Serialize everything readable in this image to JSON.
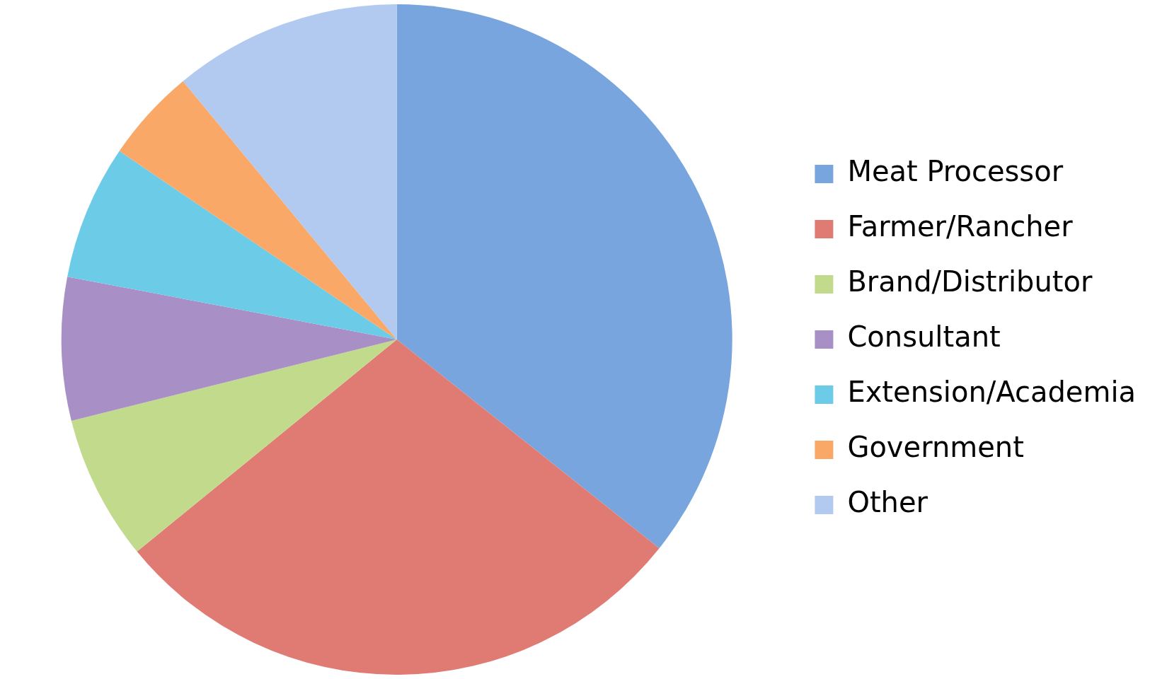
{
  "chart_data": {
    "type": "pie",
    "categories": [
      "Meat Processor",
      "Farmer/Rancher",
      "Brand/Distributor",
      "Consultant",
      "Extension/Academia",
      "Government",
      "Other"
    ],
    "values": [
      35.7,
      28.4,
      7.0,
      6.9,
      6.5,
      4.5,
      11.0
    ],
    "colors": [
      "#79a5de",
      "#e07b74",
      "#c2da8c",
      "#a88fc5",
      "#6ccbe6",
      "#f9a867",
      "#b2caef"
    ],
    "legend": "right"
  }
}
